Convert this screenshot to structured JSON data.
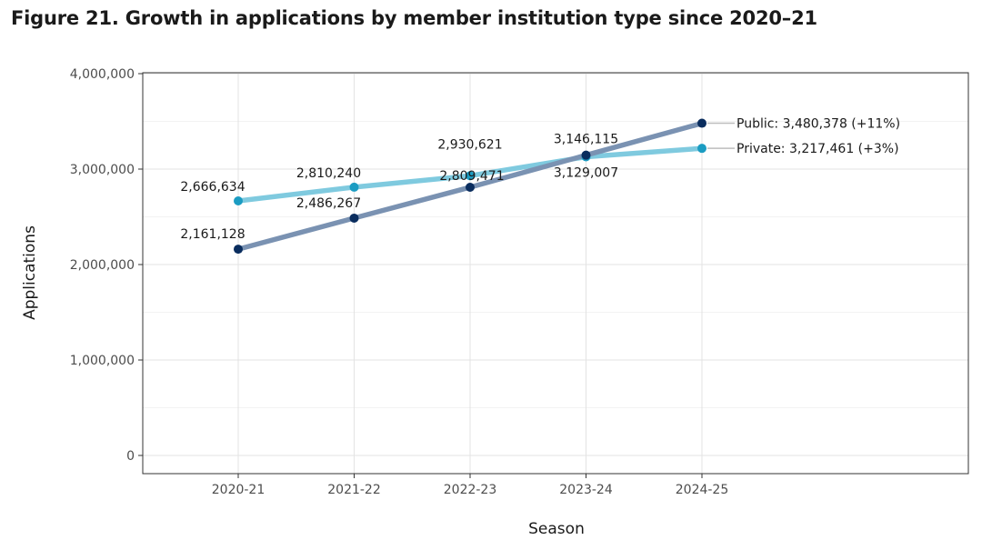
{
  "title": "Figure 21. Growth in applications by member institution type since 2020–21",
  "chart_data": {
    "type": "line",
    "xlabel": "Season",
    "ylabel": "Applications",
    "categories": [
      "2020-21",
      "2021-22",
      "2022-23",
      "2023-24",
      "2024-25"
    ],
    "ylim": [
      0,
      4000000
    ],
    "yticks": [
      0,
      1000000,
      2000000,
      3000000,
      4000000
    ],
    "ytick_labels": [
      "0",
      "1,000,000",
      "2,000,000",
      "3,000,000",
      "4,000,000"
    ],
    "grid": true,
    "series": [
      {
        "key": "private",
        "values": [
          2666634,
          2810240,
          2930621,
          3129007,
          3217461
        ],
        "point_labels": [
          "2,666,634",
          "2,810,240",
          "2,930,621",
          "3,129,007",
          ""
        ],
        "end_label": "Private: 3,217,461 (+3%)",
        "line_color": "#7fcadf",
        "point_color": "#1b9cc2"
      },
      {
        "key": "public",
        "values": [
          2161128,
          2486267,
          2809471,
          3146115,
          3480378
        ],
        "point_labels": [
          "2,161,128",
          "2,486,267",
          "2,809,471",
          "3,146,115",
          ""
        ],
        "end_label": "Public: 3,480,378 (+11%)",
        "line_color": "#7a92b2",
        "point_color": "#0a2d5e"
      }
    ]
  }
}
